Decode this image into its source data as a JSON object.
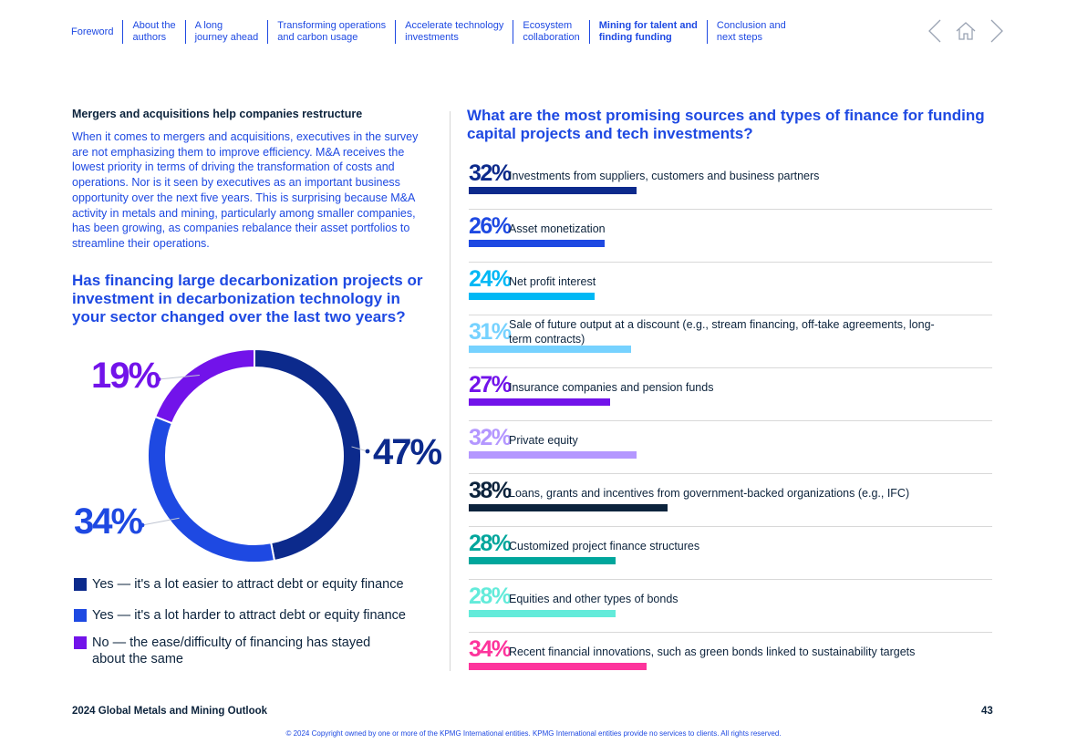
{
  "nav": {
    "items": [
      {
        "label": "Foreword",
        "active": false
      },
      {
        "label": "About the\nauthors",
        "active": false
      },
      {
        "label": "A long\njourney ahead",
        "active": false
      },
      {
        "label": "Transforming operations\nand carbon usage",
        "active": false
      },
      {
        "label": "Accelerate technology\ninvestments",
        "active": false
      },
      {
        "label": "Ecosystem\ncollaboration",
        "active": false
      },
      {
        "label": "Mining for talent and\nfinding funding",
        "active": true
      },
      {
        "label": "Conclusion and\nnext steps",
        "active": false
      }
    ],
    "icons": {
      "prev": "chevron-left-icon",
      "home": "home-icon",
      "next": "chevron-right-icon"
    }
  },
  "left": {
    "sub_heading": "Mergers and acquisitions help companies restructure",
    "body": "When it comes to mergers and acquisitions, executives in the survey are not emphasizing them to improve efficiency. M&A receives the lowest priority in terms of driving the transformation of costs and operations. Nor is it seen by executives as an important business opportunity over the next five years. This is surprising because M&A activity in metals and mining, particularly among smaller companies, has been growing, as companies rebalance their asset portfolios to streamline their operations.",
    "question": "Has financing large decarbonization projects or investment in decarbonization technology in your sector changed over the last two years?"
  },
  "donut_chart": {
    "chart_data": {
      "type": "pie",
      "donut": true,
      "slices": [
        {
          "label": "Yes — it's a lot easier to attract debt or equity finance",
          "value": 47,
          "display": "47%",
          "color": "#0c2a8c"
        },
        {
          "label": "Yes — it's a lot harder to attract debt or equity finance",
          "value": 34,
          "display": "34%",
          "color": "#1e49e2"
        },
        {
          "label": "No — the ease/difficulty of financing has stayed about the same",
          "value": 19,
          "display": "19%",
          "color": "#7213ea"
        }
      ]
    }
  },
  "right": {
    "question": "What are the most promising sources and types of finance for funding capital projects and tech investments?",
    "chart_data": {
      "type": "bar",
      "orientation": "horizontal",
      "max": 100,
      "items": [
        {
          "pct": "32%",
          "value": 32,
          "label": "Investments from suppliers, customers and business partners",
          "color": "#0c2a8c"
        },
        {
          "pct": "26%",
          "value": 26,
          "label": "Asset monetization",
          "color": "#1e49e2"
        },
        {
          "pct": "24%",
          "value": 24,
          "label": "Net profit interest",
          "color": "#00b8f5"
        },
        {
          "pct": "31%",
          "value": 31,
          "label": "Sale of future output at a discount (e.g., stream financing, off-take agreements, long-term contracts)",
          "color": "#76d2ff"
        },
        {
          "pct": "27%",
          "value": 27,
          "label": "Insurance companies and pension funds",
          "color": "#7213ea"
        },
        {
          "pct": "32%",
          "value": 32,
          "label": "Private equity",
          "color": "#b497ff"
        },
        {
          "pct": "38%",
          "value": 38,
          "label": "Loans, grants and incentives from government-backed organizations (e.g., IFC)",
          "color": "#0c233c"
        },
        {
          "pct": "28%",
          "value": 28,
          "label": "Customized project finance structures",
          "color": "#00a69c"
        },
        {
          "pct": "28%",
          "value": 28,
          "label": "Equities and other types of bonds",
          "color": "#63ebda"
        },
        {
          "pct": "34%",
          "value": 34,
          "label": "Recent financial innovations, such as green bonds linked to sustainability targets",
          "color": "#fd349c"
        }
      ]
    }
  },
  "footer": {
    "title": "2024 Global Metals and Mining Outlook",
    "page": "43",
    "copyright": "© 2024 Copyright owned by one or more of the KPMG International entities. KPMG International entities provide no services to clients. All rights reserved."
  }
}
